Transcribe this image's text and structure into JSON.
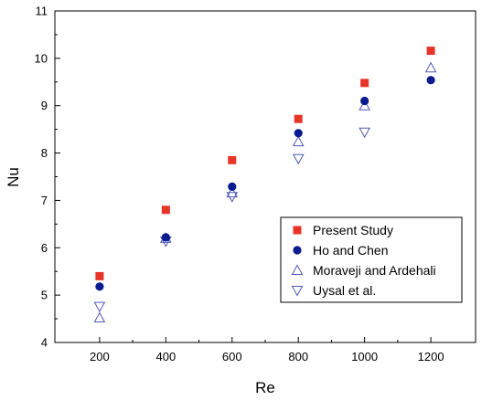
{
  "chart_data": {
    "type": "scatter",
    "xlabel": "Re",
    "ylabel": "Nu",
    "xlim": [
      65,
      1335
    ],
    "ylim": [
      4,
      11
    ],
    "x_ticks": [
      200,
      400,
      600,
      800,
      1000,
      1200
    ],
    "y_ticks": [
      4,
      5,
      6,
      7,
      8,
      9,
      10,
      11
    ],
    "grid": false,
    "legend_position": "center-right",
    "series": [
      {
        "name": "Present Study",
        "marker": "filled-square",
        "color": "#e8352a",
        "x": [
          200,
          400,
          600,
          800,
          1000,
          1200
        ],
        "y": [
          5.4,
          6.8,
          7.85,
          8.72,
          9.48,
          10.16
        ]
      },
      {
        "name": "Ho and Chen",
        "marker": "filled-circle",
        "color": "#0a1a8f",
        "x": [
          200,
          400,
          600,
          800,
          1000,
          1200
        ],
        "y": [
          5.18,
          6.22,
          7.29,
          8.42,
          9.1,
          9.54
        ]
      },
      {
        "name": "Moraveji and Ardehali",
        "marker": "open-triangle-up",
        "color": "#5058b8",
        "x": [
          200,
          400,
          600,
          800,
          1000,
          1200
        ],
        "y": [
          4.52,
          6.2,
          7.16,
          8.24,
          9.0,
          9.8
        ]
      },
      {
        "name": "Uysal et al.",
        "marker": "open-triangle-down",
        "color": "#5058b8",
        "x": [
          200,
          400,
          600,
          800,
          1000,
          1200
        ],
        "y": [
          4.76,
          6.14,
          7.08,
          7.88,
          8.44,
          null
        ]
      }
    ]
  }
}
